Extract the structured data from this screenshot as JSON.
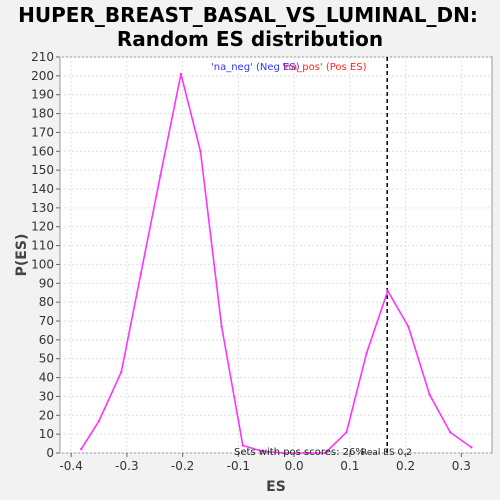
{
  "chart_data": {
    "type": "line",
    "title_line1": "HUPER_BREAST_BASAL_VS_LUMINAL_DN:",
    "title_line2": "Random ES distribution",
    "xlabel": "ES",
    "ylabel": "P(ES)",
    "xlim": [
      -0.42,
      0.355
    ],
    "ylim": [
      0,
      210
    ],
    "x_ticks": [
      -0.4,
      -0.3,
      -0.2,
      -0.1,
      0.0,
      0.1,
      0.2,
      0.3
    ],
    "x_tick_labels": [
      "-0.4",
      "-0.3",
      "-0.2",
      "-0.1",
      "0.0",
      "0.1",
      "0.2",
      "0.3"
    ],
    "y_ticks": [
      0,
      10,
      20,
      30,
      40,
      50,
      60,
      70,
      80,
      90,
      100,
      110,
      120,
      130,
      140,
      150,
      160,
      170,
      180,
      190,
      200,
      210
    ],
    "grid": true,
    "series": [
      {
        "color": "#ff33ff",
        "x": [
          -0.382,
          -0.35,
          -0.31,
          -0.275,
          -0.24,
          -0.203,
          -0.168,
          -0.13,
          -0.092,
          -0.058,
          -0.02,
          0.018,
          0.056,
          0.094,
          0.13,
          0.168,
          0.205,
          0.243,
          0.28,
          0.318
        ],
        "y": [
          2,
          17,
          43,
          95,
          147,
          201,
          160,
          67,
          4,
          1,
          0,
          0,
          0,
          11,
          53,
          86,
          67,
          31,
          11,
          3
        ]
      }
    ],
    "real_es": 0.167,
    "legend_neg": "'na_neg' (Neg ES)",
    "legend_pos": "'na_pos' (Pos ES)",
    "legend_neg_color": "#3333ff",
    "legend_pos_color": "#ff2222",
    "annotation_pos_scores": "Sets with pos scores: 26%",
    "annotation_real_es": "Real ES 0.2"
  }
}
